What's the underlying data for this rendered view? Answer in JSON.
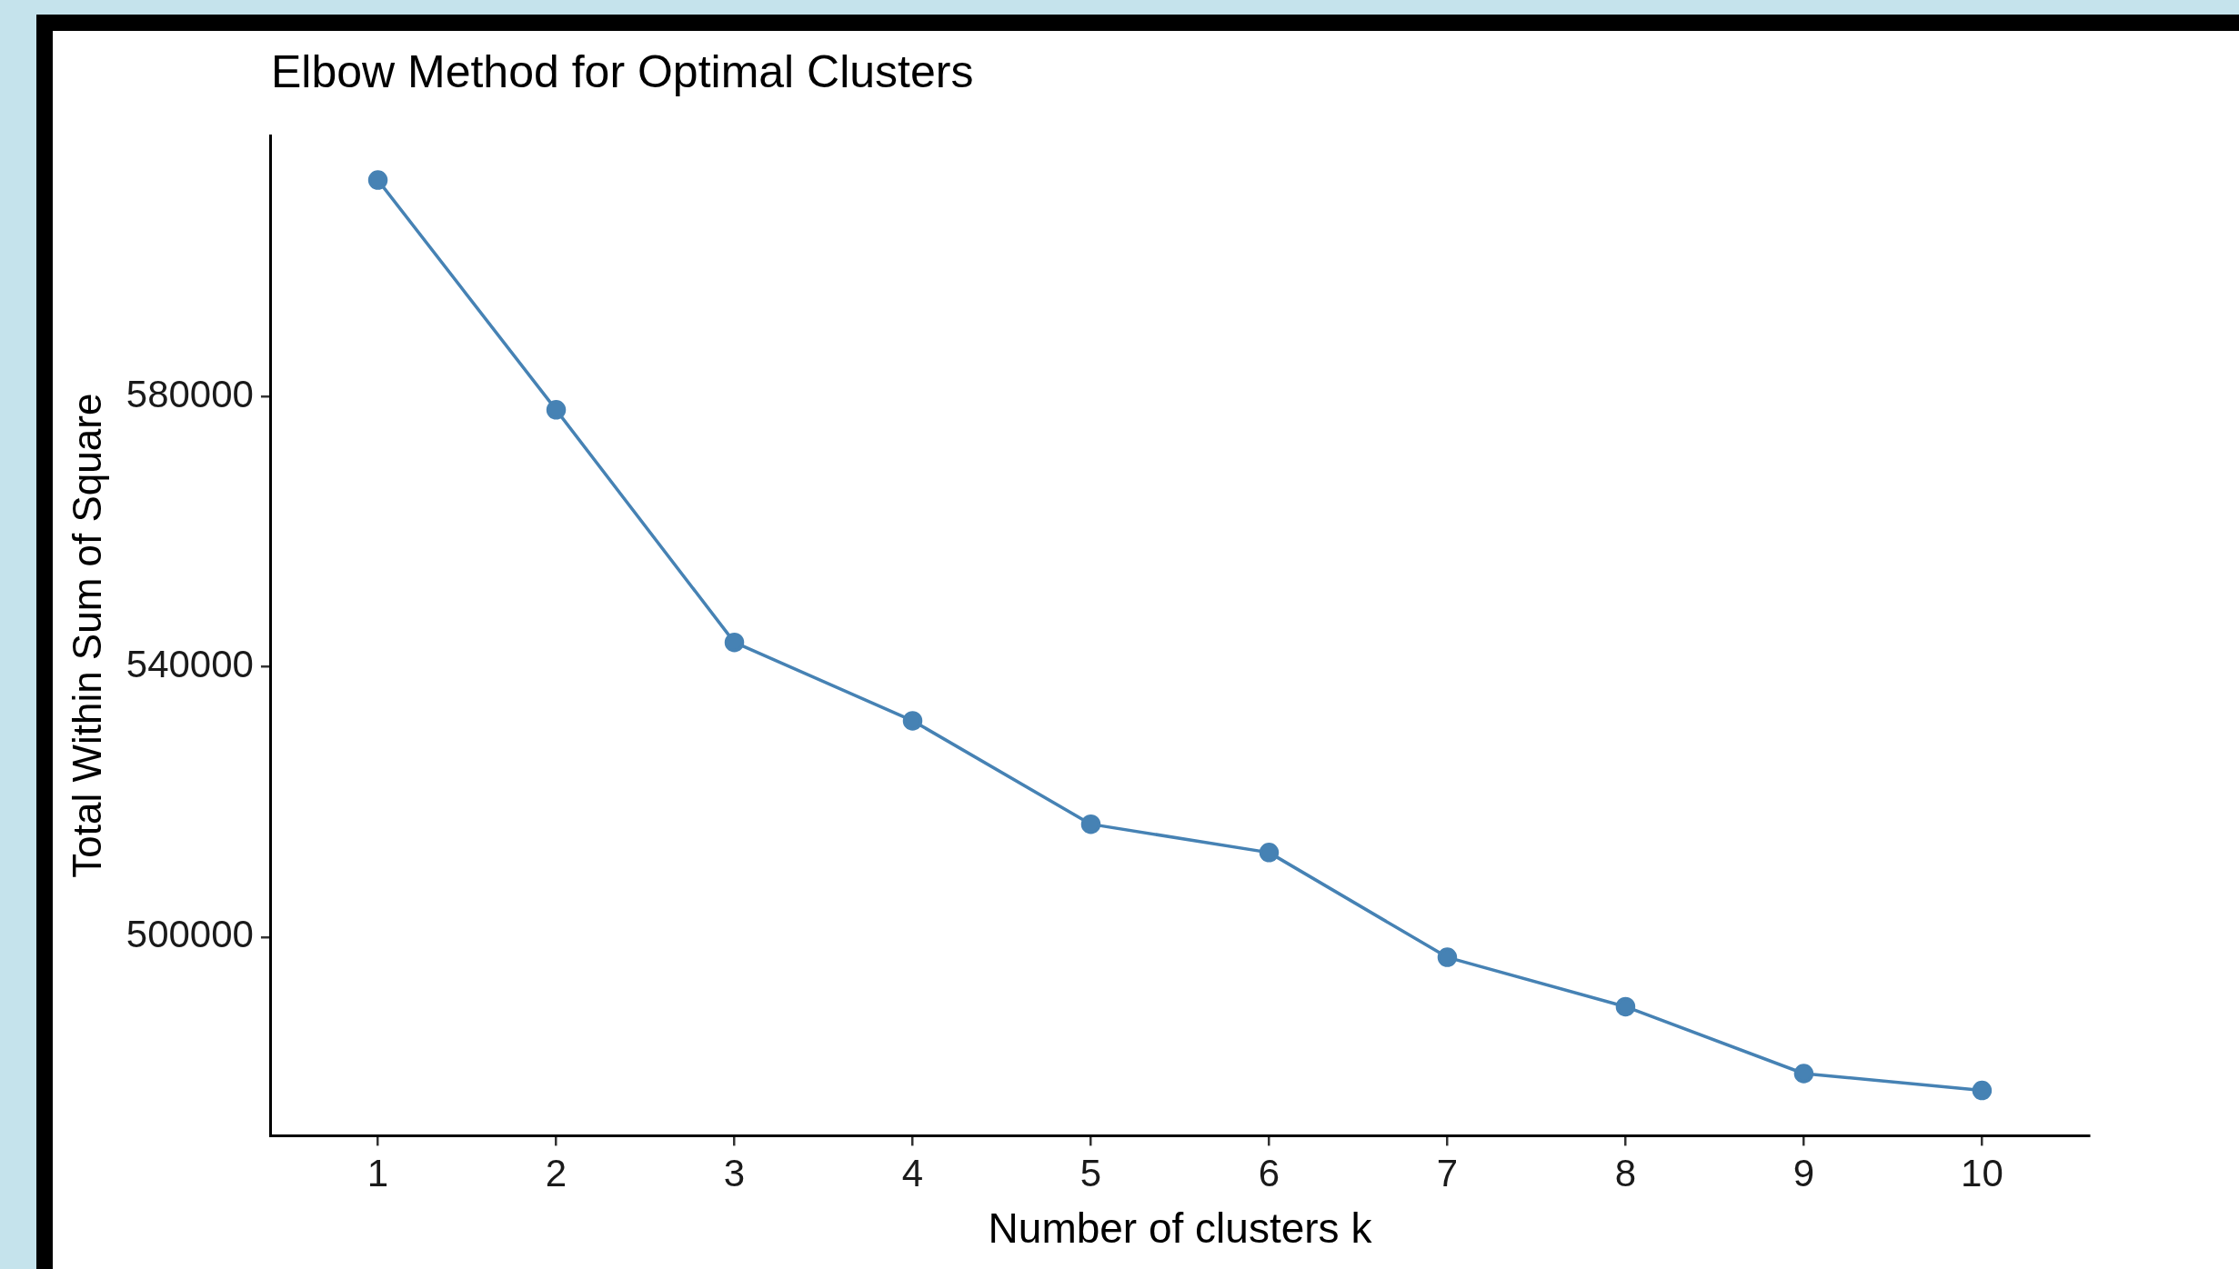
{
  "chart_data": {
    "type": "line",
    "title": "Elbow Method for Optimal Clusters",
    "xlabel": "Number of clusters k",
    "ylabel": "Total Within Sum of Square",
    "x": [
      1,
      2,
      3,
      4,
      5,
      6,
      7,
      8,
      9,
      10
    ],
    "series": [
      {
        "color": "#4682b4",
        "values": [
          612000,
          578000,
          543600,
          532000,
          516700,
          512500,
          497000,
          489700,
          479800,
          477300
        ]
      }
    ],
    "xlim": [
      0.4,
      10.6
    ],
    "xticks": [
      1,
      2,
      3,
      4,
      5,
      6,
      7,
      8,
      9,
      10
    ],
    "ylim": [
      470600,
      618600
    ],
    "yticks": [
      500000,
      540000,
      580000
    ],
    "grid": false,
    "legend": false,
    "marker": "circle",
    "line_style": "solid"
  }
}
